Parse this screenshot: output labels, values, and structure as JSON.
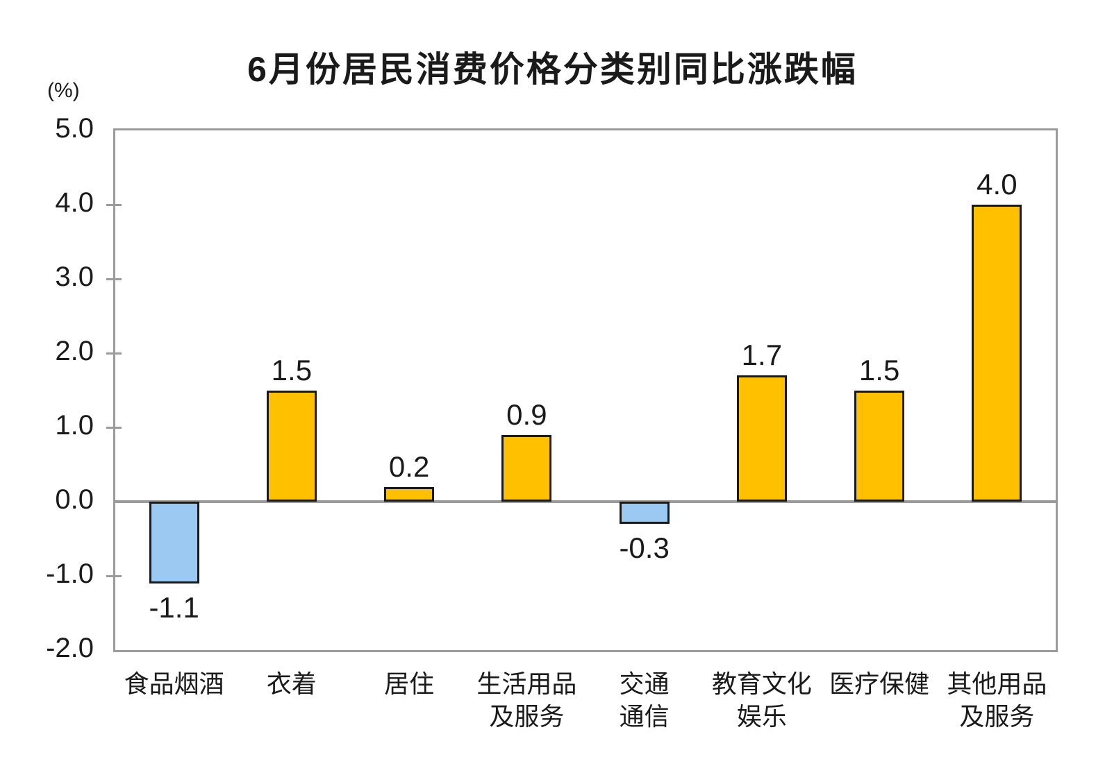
{
  "chart_data": {
    "type": "bar",
    "title": "6月份居民消费价格分类别同比涨跌幅",
    "unit_label": "(%)",
    "categories": [
      "食品烟酒",
      "衣着",
      "居住",
      "生活用品\n及服务",
      "交通\n通信",
      "教育文化\n娱乐",
      "医疗保健",
      "其他用品\n及服务"
    ],
    "values": [
      -1.1,
      1.5,
      0.2,
      0.9,
      -0.3,
      1.7,
      1.5,
      4.0
    ],
    "value_labels": [
      "-1.1",
      "1.5",
      "0.2",
      "0.9",
      "-0.3",
      "1.7",
      "1.5",
      "4.0"
    ],
    "ylim": [
      -2.0,
      5.0
    ],
    "yticks": [
      5.0,
      4.0,
      3.0,
      2.0,
      1.0,
      0.0,
      -1.0,
      -2.0
    ],
    "ytick_labels": [
      "5.0",
      "4.0",
      "3.0",
      "2.0",
      "1.0",
      "0.0",
      "-1.0",
      "-2.0"
    ],
    "xlabel": "",
    "ylabel": "",
    "grid": false,
    "legend": null,
    "colors": {
      "bar_positive": "#FFC000",
      "bar_negative": "#9CC9F2",
      "bar_border": "#1A1A1A",
      "axis_border": "#9B9B9B",
      "zero_line": "#9B9B9B",
      "tick": "#9B9B9B",
      "text": "#1A1A1A"
    }
  }
}
